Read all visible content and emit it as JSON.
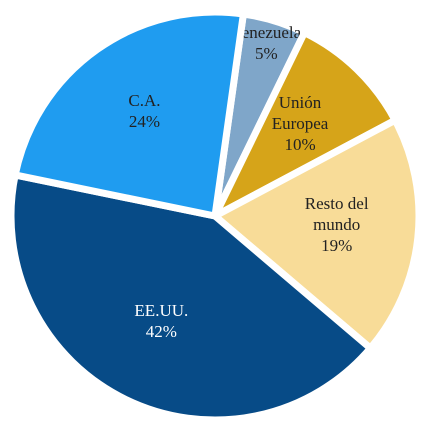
{
  "chart_data": {
    "type": "pie",
    "categories": [
      "Venezuela",
      "Unión Europea",
      "Resto del mundo",
      "EE.UU.",
      "C.A."
    ],
    "values": [
      5,
      10,
      19,
      42,
      24
    ],
    "value_labels": [
      "5%",
      "10%",
      "19%",
      "42%",
      "24%"
    ],
    "colors": [
      "#7fa6c9",
      "#d6a419",
      "#f8dc98",
      "#074b87",
      "#1f9cf0"
    ]
  }
}
